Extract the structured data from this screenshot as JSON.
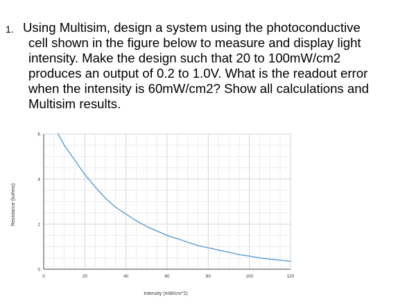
{
  "question": {
    "number": "1.",
    "lines": [
      "Using Multisim, design a system using the photoconductive",
      "cell shown in the figure below to measure and display light",
      "intensity. Make the design such that 20 to 100mW/cm2",
      "produces an output of 0.2 to 1.0V. What is the readout error",
      "when the intensity is 60mW/cm2? Show all calculations and",
      "Multisim results."
    ]
  },
  "chart_data": {
    "type": "line",
    "title": "",
    "xlabel": "Intensity (mW/cm^2)",
    "ylabel": "Resistance (kohms)",
    "xlim": [
      0,
      120
    ],
    "ylim": [
      0,
      6
    ],
    "xticks": [
      "0",
      "20",
      "40",
      "60",
      "80",
      "100",
      "120"
    ],
    "yticks": [
      "0",
      "2",
      "4",
      "6"
    ],
    "grid": true,
    "series": [
      {
        "color": "#5b9bd5",
        "x": [
          7,
          10,
          15,
          20,
          25,
          30,
          35,
          40,
          45,
          50,
          55,
          60,
          65,
          70,
          75,
          80,
          85,
          90,
          95,
          100,
          105,
          110,
          115,
          120
        ],
        "y": [
          6.0,
          5.5,
          4.85,
          4.2,
          3.65,
          3.15,
          2.75,
          2.45,
          2.15,
          1.9,
          1.7,
          1.5,
          1.35,
          1.2,
          1.05,
          0.95,
          0.85,
          0.75,
          0.65,
          0.58,
          0.5,
          0.45,
          0.4,
          0.35
        ]
      }
    ]
  }
}
